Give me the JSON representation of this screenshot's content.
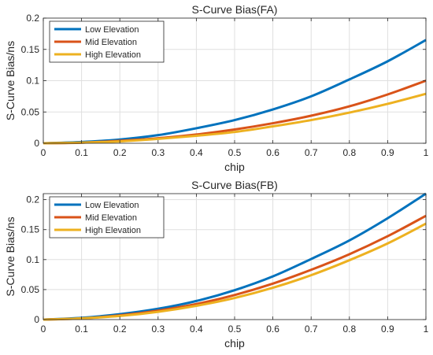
{
  "chart_data": [
    {
      "type": "line",
      "title": "S-Curve Bias(FA)",
      "xlabel": "chip",
      "ylabel": "S-Curve Bias/ns",
      "xlim": [
        0,
        1
      ],
      "ylim": [
        0,
        0.2
      ],
      "xticks": [
        "0",
        "0.1",
        "0.2",
        "0.3",
        "0.4",
        "0.5",
        "0.6",
        "0.7",
        "0.8",
        "0.9",
        "1"
      ],
      "yticks": [
        "0",
        "0.05",
        "0.1",
        "0.15",
        "0.2"
      ],
      "grid": true,
      "legend_position": "top-left",
      "x": [
        0,
        0.1,
        0.2,
        0.3,
        0.4,
        0.5,
        0.6,
        0.7,
        0.8,
        0.9,
        1.0
      ],
      "series": [
        {
          "name": "Low Elevation",
          "color": "#0072BD",
          "values": [
            0,
            0.002,
            0.006,
            0.013,
            0.024,
            0.037,
            0.054,
            0.075,
            0.102,
            0.131,
            0.165
          ]
        },
        {
          "name": "Mid Elevation",
          "color": "#D95319",
          "values": [
            0,
            0.001,
            0.004,
            0.008,
            0.014,
            0.022,
            0.032,
            0.044,
            0.059,
            0.078,
            0.1
          ]
        },
        {
          "name": "High Elevation",
          "color": "#EDB120",
          "values": [
            0,
            0.001,
            0.003,
            0.007,
            0.012,
            0.018,
            0.027,
            0.037,
            0.049,
            0.063,
            0.079
          ]
        }
      ]
    },
    {
      "type": "line",
      "title": "S-Curve Bias(FB)",
      "xlabel": "chip",
      "ylabel": "S-Curve Bias/ns",
      "xlim": [
        0,
        1
      ],
      "ylim": [
        0,
        0.21
      ],
      "xticks": [
        "0",
        "0.1",
        "0.2",
        "0.3",
        "0.4",
        "0.5",
        "0.6",
        "0.7",
        "0.8",
        "0.9",
        "1"
      ],
      "yticks": [
        "0",
        "0.05",
        "0.1",
        "0.15",
        "0.2"
      ],
      "grid": true,
      "legend_position": "top-left",
      "x": [
        0,
        0.1,
        0.2,
        0.3,
        0.4,
        0.5,
        0.6,
        0.7,
        0.8,
        0.9,
        1.0
      ],
      "series": [
        {
          "name": "Low Elevation",
          "color": "#0072BD",
          "values": [
            0,
            0.003,
            0.009,
            0.018,
            0.031,
            0.049,
            0.072,
            0.101,
            0.132,
            0.169,
            0.21
          ]
        },
        {
          "name": "Mid Elevation",
          "color": "#D95319",
          "values": [
            0,
            0.002,
            0.007,
            0.015,
            0.026,
            0.041,
            0.06,
            0.083,
            0.109,
            0.139,
            0.173
          ]
        },
        {
          "name": "High Elevation",
          "color": "#EDB120",
          "values": [
            0,
            0.002,
            0.006,
            0.013,
            0.023,
            0.036,
            0.053,
            0.074,
            0.099,
            0.127,
            0.16
          ]
        }
      ]
    }
  ]
}
